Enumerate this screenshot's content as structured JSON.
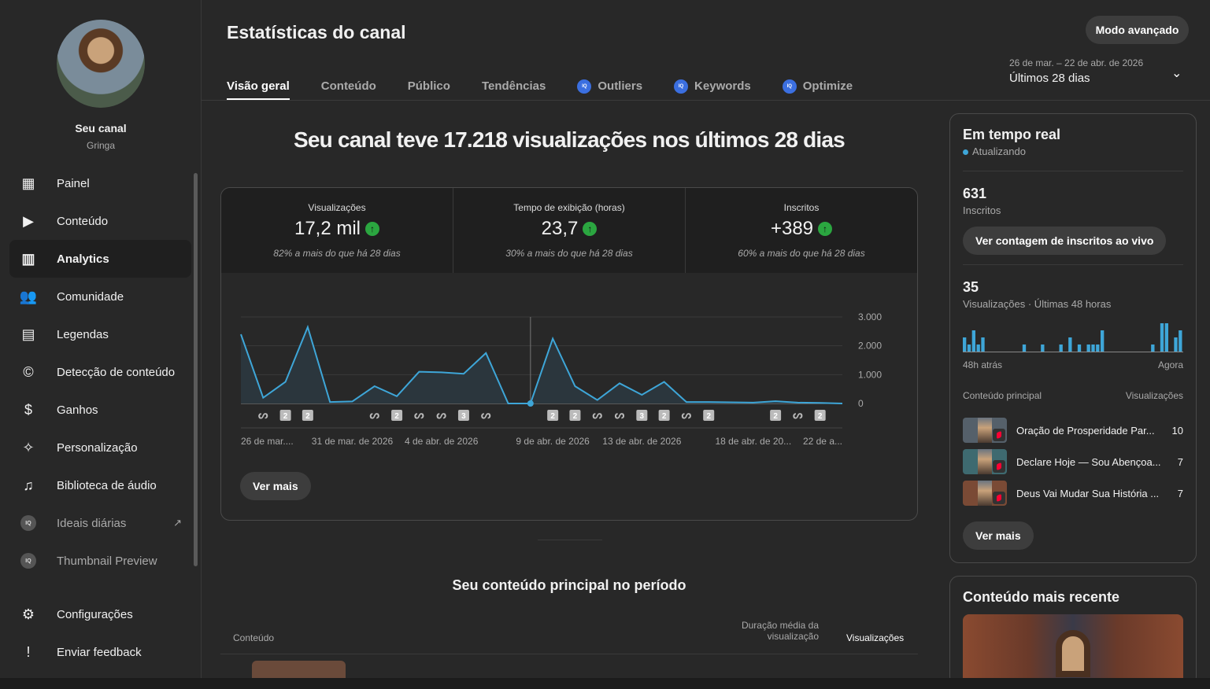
{
  "channel": {
    "name": "Seu canal",
    "handle": "Gringa"
  },
  "sidebar": {
    "items": [
      {
        "label": "Painel",
        "icon": "dashboard-icon"
      },
      {
        "label": "Conteúdo",
        "icon": "content-icon"
      },
      {
        "label": "Analytics",
        "icon": "analytics-icon",
        "active": true
      },
      {
        "label": "Comunidade",
        "icon": "community-icon"
      },
      {
        "label": "Legendas",
        "icon": "subtitles-icon"
      },
      {
        "label": "Detecção de conteúdo",
        "icon": "copyright-icon"
      },
      {
        "label": "Ganhos",
        "icon": "dollar-icon"
      },
      {
        "label": "Personalização",
        "icon": "magic-wand-icon"
      },
      {
        "label": "Biblioteca de áudio",
        "icon": "audio-library-icon"
      },
      {
        "label": "Ideais diárias",
        "icon": "vidiq-icon",
        "external": true
      },
      {
        "label": "Thumbnail Preview",
        "icon": "vidiq-icon"
      }
    ],
    "bottom": [
      {
        "label": "Configurações",
        "icon": "gear-icon"
      },
      {
        "label": "Enviar feedback",
        "icon": "feedback-icon"
      }
    ]
  },
  "header": {
    "title": "Estatísticas do canal",
    "advanced_button": "Modo avançado",
    "date_range": "26 de mar. – 22 de abr. de 2026",
    "period": "Últimos 28 dias",
    "tabs": [
      {
        "label": "Visão geral"
      },
      {
        "label": "Conteúdo"
      },
      {
        "label": "Público"
      },
      {
        "label": "Tendências"
      },
      {
        "label": "Outliers",
        "iq": true
      },
      {
        "label": "Keywords",
        "iq": true
      },
      {
        "label": "Optimize",
        "iq": true
      }
    ],
    "iq_badge": "IQ"
  },
  "main": {
    "headline": "Seu canal teve 17.218 visualizações nos últimos 28 dias",
    "metrics": [
      {
        "label": "Visualizações",
        "value": "17,2 mil",
        "compare": "82% a mais do que há 28 dias"
      },
      {
        "label": "Tempo de exibição (horas)",
        "value": "23,7",
        "compare": "30% a mais do que há 28 dias"
      },
      {
        "label": "Inscritos",
        "value": "+389",
        "compare": "60% a mais do que há 28 dias"
      }
    ],
    "see_more": "Ver mais",
    "top_content_title": "Seu conteúdo principal no período",
    "table_headers": {
      "content": "Conteúdo",
      "avg_duration": "Duração média da visualização",
      "views": "Visualizações"
    }
  },
  "chart_data": {
    "type": "area",
    "title": "Visualizações",
    "ylim": [
      0,
      3000
    ],
    "y_ticks": [
      "3.000",
      "2.000",
      "1.000",
      "0"
    ],
    "y_tick_values": [
      3000,
      2000,
      1000,
      0
    ],
    "x_labels": [
      {
        "i": 0,
        "label": "26 de mar...."
      },
      {
        "i": 5,
        "label": "31 de mar. de 2026"
      },
      {
        "i": 9,
        "label": "4 de abr. de 2026"
      },
      {
        "i": 14,
        "label": "9 de abr. de 2026"
      },
      {
        "i": 18,
        "label": "13 de abr. de 2026"
      },
      {
        "i": 23,
        "label": "18 de abr. de 20..."
      },
      {
        "i": 27,
        "label": "22 de a..."
      }
    ],
    "values": [
      2400,
      200,
      750,
      2650,
      50,
      70,
      600,
      250,
      1100,
      1080,
      1030,
      1750,
      0,
      0,
      2250,
      600,
      120,
      700,
      300,
      750,
      50,
      50,
      40,
      30,
      80,
      30,
      20,
      0
    ],
    "hover_index": 13,
    "markers": [
      {
        "i": 1,
        "t": "S"
      },
      {
        "i": 2,
        "t": "2"
      },
      {
        "i": 3,
        "t": "2"
      },
      {
        "i": 6,
        "t": "S"
      },
      {
        "i": 7,
        "t": "2"
      },
      {
        "i": 8,
        "t": "S"
      },
      {
        "i": 9,
        "t": "S"
      },
      {
        "i": 10,
        "t": "3"
      },
      {
        "i": 11,
        "t": "S"
      },
      {
        "i": 14,
        "t": "2"
      },
      {
        "i": 15,
        "t": "2"
      },
      {
        "i": 16,
        "t": "S"
      },
      {
        "i": 17,
        "t": "S"
      },
      {
        "i": 18,
        "t": "3"
      },
      {
        "i": 19,
        "t": "2"
      },
      {
        "i": 20,
        "t": "S"
      },
      {
        "i": 21,
        "t": "2"
      },
      {
        "i": 24,
        "t": "2"
      },
      {
        "i": 25,
        "t": "S"
      },
      {
        "i": 26,
        "t": "2"
      }
    ],
    "line_color": "#3ea6d8"
  },
  "realtime": {
    "title": "Em tempo real",
    "status": "Atualizando",
    "subs": "631",
    "subs_label": "Inscritos",
    "live_button": "Ver contagem de inscritos ao vivo",
    "views": "35",
    "views_label": "Visualizações · Últimas 48 horas",
    "start": "48h atrás",
    "end": "Agora",
    "bars": [
      2,
      1,
      3,
      1,
      2,
      0,
      0,
      0,
      0,
      0,
      0,
      0,
      0,
      1,
      0,
      0,
      0,
      1,
      0,
      0,
      0,
      1,
      0,
      2,
      0,
      1,
      0,
      1,
      1,
      1,
      3,
      0,
      0,
      0,
      0,
      0,
      0,
      0,
      0,
      0,
      0,
      1,
      0,
      4,
      4,
      0,
      2,
      3
    ],
    "top_header": "Conteúdo principal",
    "views_header": "Visualizações",
    "top": [
      {
        "title": "Oração de Prosperidade Par...",
        "views": "10",
        "bg": "#55606a"
      },
      {
        "title": "Declare Hoje — Sou Abençoa...",
        "views": "7",
        "bg": "#3e6a70"
      },
      {
        "title": "Deus Vai Mudar Sua História ...",
        "views": "7",
        "bg": "#7a4a35"
      }
    ],
    "see_more": "Ver mais"
  },
  "recent": {
    "title": "Conteúdo mais recente"
  }
}
